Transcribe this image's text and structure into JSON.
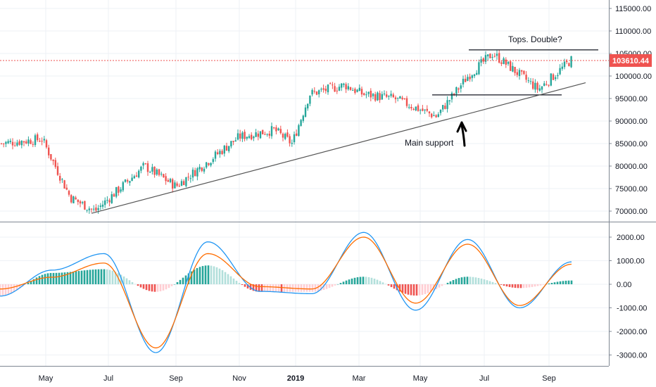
{
  "colors": {
    "up": "#26a69a",
    "down": "#ef5350",
    "hist_up_strong": "#26a69a",
    "hist_up_weak": "#b2dfdb",
    "hist_down_strong": "#ef5350",
    "hist_down_weak": "#ffcdd2",
    "macd_line": "#2196f3",
    "signal_line": "#ff6d00",
    "grid": "#eef1f5",
    "axis_text": "#131722",
    "price_label_bg": "#ef5350",
    "trendline": "#555555"
  },
  "chart_data": [
    {
      "type": "candlestick",
      "title": "",
      "x_ticks": [
        "May",
        "Jul",
        "Sep",
        "Nov",
        "2019",
        "Mar",
        "May",
        "Jul",
        "Sep"
      ],
      "y_ticks": [
        "70000.00",
        "75000.00",
        "80000.00",
        "85000.00",
        "90000.00",
        "95000.00",
        "100000.00",
        "105000.00",
        "110000.00",
        "115000.00"
      ],
      "ylim": [
        68000,
        118000
      ],
      "current_price": "103610.44",
      "key_points": [
        {
          "date": "Apr 2018",
          "close": 85000
        },
        {
          "date": "May 2018",
          "close": 86000
        },
        {
          "date": "Jun 2018",
          "close": 73000
        },
        {
          "date": "late Jun 2018",
          "close": 70000
        },
        {
          "date": "Aug 2018",
          "close": 80000
        },
        {
          "date": "Sep 2018",
          "close": 75500
        },
        {
          "date": "Oct 2018",
          "close": 86500
        },
        {
          "date": "Nov 2018",
          "close": 88000
        },
        {
          "date": "Dec 2018",
          "close": 85000
        },
        {
          "date": "Jan 2019",
          "close": 96000
        },
        {
          "date": "Feb 2019",
          "close": 98000
        },
        {
          "date": "Mar 2019",
          "close": 96000
        },
        {
          "date": "Apr 2019",
          "close": 95000
        },
        {
          "date": "May 2019",
          "close": 91000
        },
        {
          "date": "Jun 2019",
          "close": 100000
        },
        {
          "date": "Jul 2019",
          "close": 105000
        },
        {
          "date": "Aug 2019",
          "close": 97000
        },
        {
          "date": "Sep 2019",
          "close": 103610.44
        }
      ],
      "annotations": [
        {
          "text": "Tops. Double?"
        },
        {
          "text": "Main support"
        }
      ],
      "lines": [
        {
          "kind": "resistance",
          "value": 105800
        },
        {
          "kind": "support",
          "value": 95800
        },
        {
          "kind": "rising trendline",
          "from": 69500,
          "to": 98500
        }
      ]
    },
    {
      "type": "macd",
      "y_ticks": [
        "-3000.00",
        "-2000.00",
        "-1000.00",
        "0.00",
        "1000.00",
        "2000.00"
      ],
      "ylim": [
        -3300,
        2600
      ],
      "series": [
        {
          "values": [
            -500,
            600,
            1300,
            -2900,
            1800,
            -300,
            -400,
            2200,
            -1100,
            1900,
            -1000,
            950
          ]
        },
        {
          "values": [
            -200,
            300,
            900,
            -2700,
            1300,
            -100,
            -200,
            2000,
            -800,
            1700,
            -900,
            850
          ]
        }
      ]
    }
  ]
}
